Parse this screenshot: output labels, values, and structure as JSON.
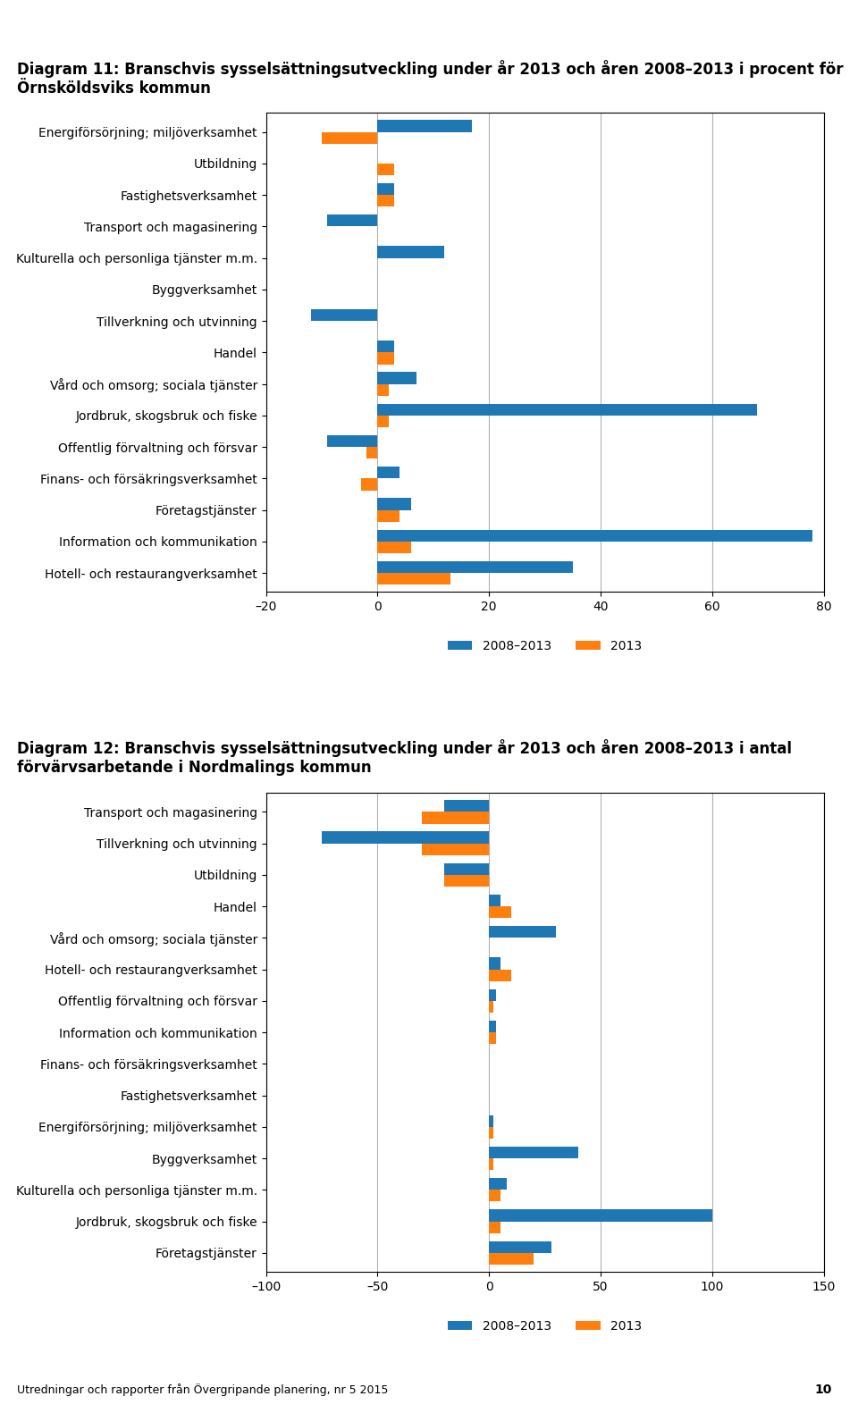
{
  "chart_data": [
    {
      "type": "bar",
      "orientation": "horizontal",
      "title": "Diagram 11: Branschvis sysselsättningsutveckling under år 2013 och åren 2008–2013 i procent för Örnsköldsviks kommun",
      "categories": [
        "Energiförsörjning; miljöverksamhet",
        "Utbildning",
        "Fastighetsverksamhet",
        "Transport och magasinering",
        "Kulturella och personliga tjänster m.m.",
        "Byggverksamhet",
        "Tillverkning och utvinning",
        "Handel",
        "Vård och omsorg; sociala tjänster",
        "Jordbruk, skogsbruk och fiske",
        "Offentlig förvaltning och försvar",
        "Finans- och försäkringsverksamhet",
        "Företagstjänster",
        "Information och kommunikation",
        "Hotell- och restaurangverksamhet"
      ],
      "series": [
        {
          "name": "2008–2013",
          "values": [
            17,
            0,
            3,
            -9,
            12,
            0,
            -12,
            3,
            7,
            68,
            -9,
            4,
            6,
            78,
            35
          ]
        },
        {
          "name": "2013",
          "values": [
            -10,
            3,
            3,
            0,
            0,
            0,
            0,
            3,
            2,
            2,
            -2,
            -3,
            4,
            6,
            13
          ]
        }
      ],
      "xlim": [
        -20,
        80
      ],
      "xticks": [
        {
          "value": -20,
          "label": "–20"
        },
        0,
        20,
        40,
        60,
        80
      ],
      "grid": true,
      "legend": "lower center"
    },
    {
      "type": "bar",
      "orientation": "horizontal",
      "title": "Diagram 12: Branschvis sysselsättningsutveckling under år 2013 och åren 2008–2013 i antal förvärvsarbetande i Nordmalings kommun",
      "categories": [
        "Transport och magasinering",
        "Tillverkning och utvinning",
        "Utbildning",
        "Handel",
        "Vård och omsorg; sociala tjänster",
        "Hotell- och restaurangverksamhet",
        "Offentlig förvaltning och försvar",
        "Information och kommunikation",
        "Finans- och försäkringsverksamhet",
        "Fastighetsverksamhet",
        "Energiförsörjning; miljöverksamhet",
        "Byggverksamhet",
        "Kulturella och personliga tjänster m.m.",
        "Jordbruk, skogsbruk och fiske",
        "Företagstjänster"
      ],
      "series": [
        {
          "name": "2008–2013",
          "values": [
            -20,
            -75,
            -20,
            5,
            30,
            5,
            3,
            3,
            0,
            0,
            2,
            40,
            8,
            100,
            28
          ]
        },
        {
          "name": "2013",
          "values": [
            -30,
            -30,
            -20,
            10,
            0,
            10,
            2,
            3,
            0,
            0,
            2,
            2,
            5,
            5,
            20
          ]
        }
      ],
      "xlim": [
        -100,
        150
      ],
      "xticks": [
        {
          "value": -100,
          "label": "–100"
        },
        {
          "value": -50,
          "label": "–50"
        },
        0,
        50,
        100,
        150
      ],
      "grid": true,
      "legend": "lower center"
    }
  ],
  "annotations": [
    "Utredningar och rapporter från Övergripande planering, nr 5 2015",
    "10"
  ]
}
